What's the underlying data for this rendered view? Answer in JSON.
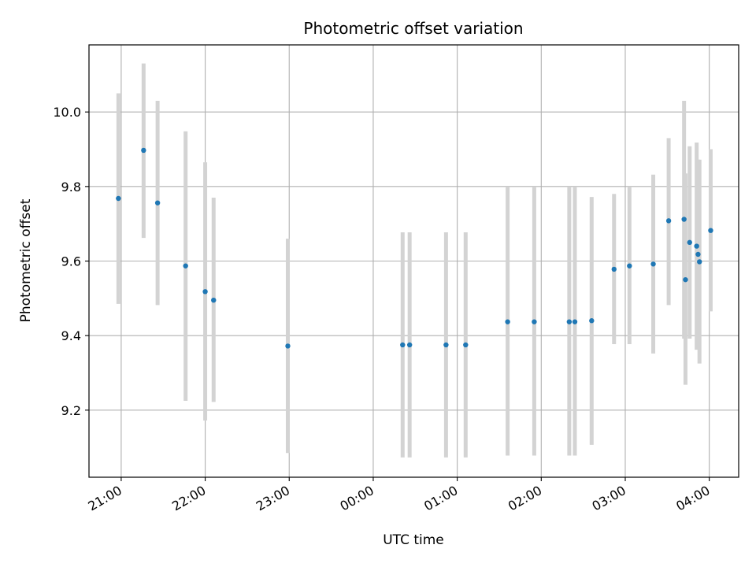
{
  "chart_data": {
    "type": "scatter",
    "title": "Photometric offset variation",
    "xlabel": "UTC time",
    "ylabel": "Photometric offset",
    "x_unit": "UTC",
    "xlim": [
      "20:37",
      "04:21"
    ],
    "ylim": [
      9.02,
      10.18
    ],
    "grid": true,
    "legend": "none",
    "x_ticks": [
      "21:00",
      "22:00",
      "23:00",
      "00:00",
      "01:00",
      "02:00",
      "03:00",
      "04:00"
    ],
    "y_ticks": [
      9.2,
      9.4,
      9.6,
      9.8,
      10.0
    ],
    "y_tick_labels": [
      "9.2",
      "9.4",
      "9.6",
      "9.8",
      "10.0"
    ],
    "colors": {
      "point": "#1f77b4",
      "errorbar": "#d3d3d3",
      "grid": "#b0b0b0"
    },
    "points": [
      {
        "t": "20:58",
        "y": 9.768,
        "lo": 9.485,
        "hi": 10.05
      },
      {
        "t": "21:16",
        "y": 9.897,
        "lo": 9.662,
        "hi": 10.13
      },
      {
        "t": "21:26",
        "y": 9.756,
        "lo": 9.482,
        "hi": 10.03
      },
      {
        "t": "21:46",
        "y": 9.587,
        "lo": 9.225,
        "hi": 9.948
      },
      {
        "t": "22:00",
        "y": 9.518,
        "lo": 9.172,
        "hi": 9.865
      },
      {
        "t": "22:06",
        "y": 9.495,
        "lo": 9.222,
        "hi": 9.77
      },
      {
        "t": "22:59",
        "y": 9.372,
        "lo": 9.085,
        "hi": 9.66
      },
      {
        "t": "00:21",
        "y": 9.375,
        "lo": 9.073,
        "hi": 9.677
      },
      {
        "t": "00:26",
        "y": 9.375,
        "lo": 9.073,
        "hi": 9.677
      },
      {
        "t": "00:52",
        "y": 9.375,
        "lo": 9.073,
        "hi": 9.677
      },
      {
        "t": "01:06",
        "y": 9.375,
        "lo": 9.073,
        "hi": 9.677
      },
      {
        "t": "01:36",
        "y": 9.437,
        "lo": 9.078,
        "hi": 9.8
      },
      {
        "t": "01:55",
        "y": 9.437,
        "lo": 9.078,
        "hi": 9.8
      },
      {
        "t": "02:20",
        "y": 9.437,
        "lo": 9.078,
        "hi": 9.8
      },
      {
        "t": "02:24",
        "y": 9.437,
        "lo": 9.078,
        "hi": 9.8
      },
      {
        "t": "02:36",
        "y": 9.44,
        "lo": 9.107,
        "hi": 9.772
      },
      {
        "t": "02:52",
        "y": 9.578,
        "lo": 9.377,
        "hi": 9.78
      },
      {
        "t": "03:03",
        "y": 9.587,
        "lo": 9.377,
        "hi": 9.8
      },
      {
        "t": "03:20",
        "y": 9.592,
        "lo": 9.352,
        "hi": 9.832
      },
      {
        "t": "03:31",
        "y": 9.708,
        "lo": 9.482,
        "hi": 9.93
      },
      {
        "t": "03:42",
        "y": 9.712,
        "lo": 9.392,
        "hi": 10.03
      },
      {
        "t": "03:43",
        "y": 9.55,
        "lo": 9.268,
        "hi": 9.835
      },
      {
        "t": "03:46",
        "y": 9.65,
        "lo": 9.392,
        "hi": 9.908
      },
      {
        "t": "03:51",
        "y": 9.64,
        "lo": 9.362,
        "hi": 9.918
      },
      {
        "t": "03:52",
        "y": 9.618,
        "lo": 9.365,
        "hi": 9.872
      },
      {
        "t": "03:53",
        "y": 9.598,
        "lo": 9.325,
        "hi": 9.872
      },
      {
        "t": "04:01",
        "y": 9.682,
        "lo": 9.465,
        "hi": 9.9
      }
    ]
  }
}
